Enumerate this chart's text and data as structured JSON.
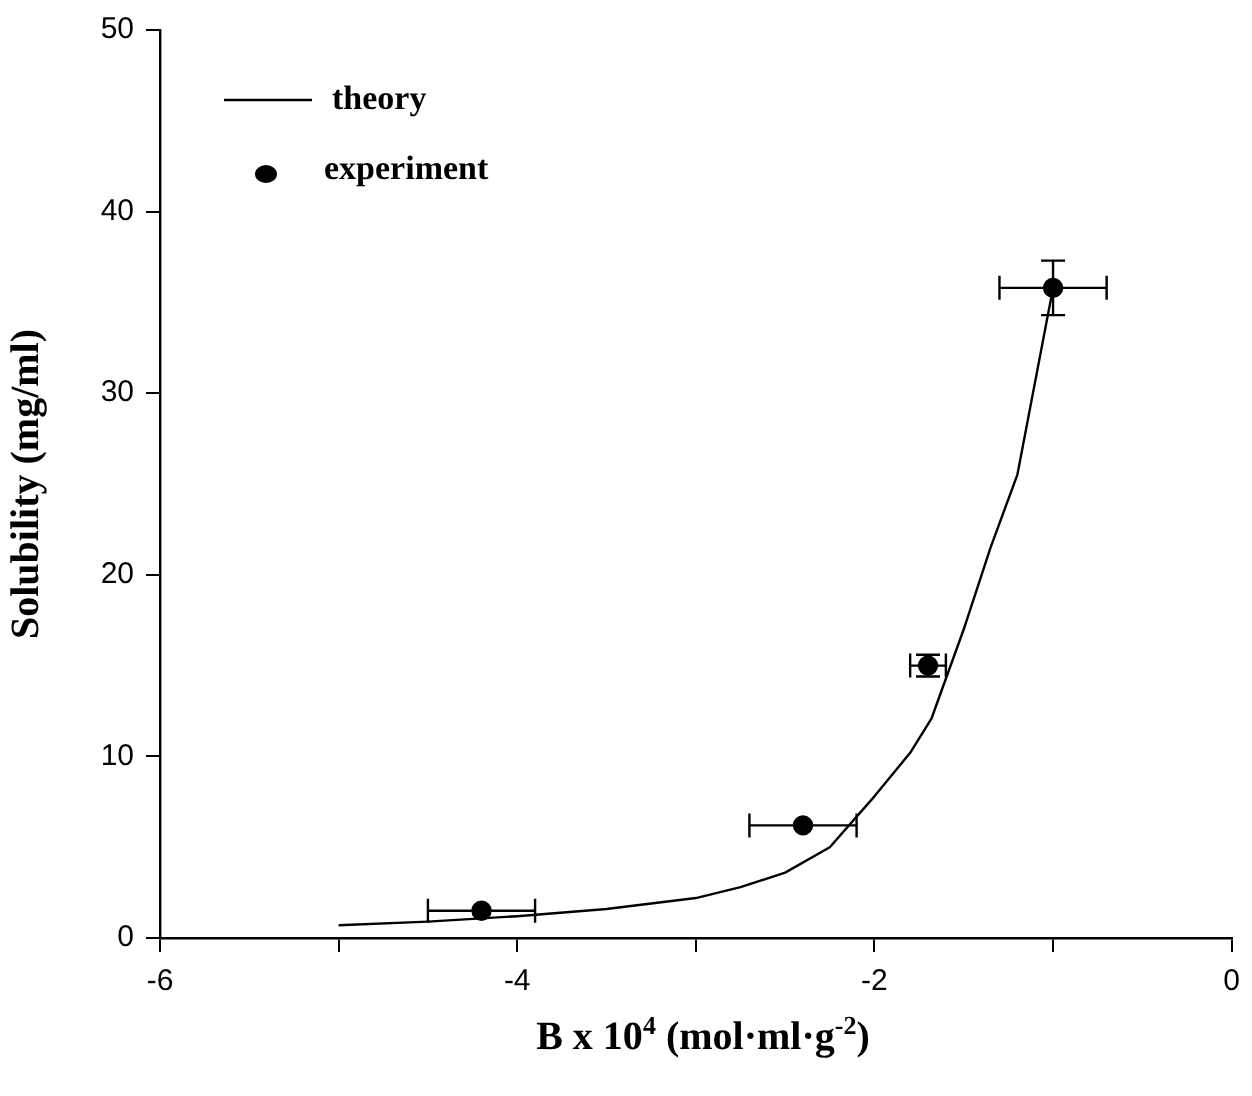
{
  "chart_data": {
    "type": "scatter",
    "xlabel": "B x 10$^{4}$ (mol·ml·g$^{-2}$)",
    "ylabel": "Solubility (mg/ml)",
    "xlim": [
      -6,
      0
    ],
    "xticks": [
      -6,
      {
        "value": -5,
        "label": null
      },
      -4,
      {
        "value": -3,
        "label": null
      },
      -2,
      {
        "value": -1,
        "label": null
      },
      0
    ],
    "ylim": [
      0,
      50
    ],
    "yticks": [
      0,
      10,
      20,
      30,
      40,
      50
    ],
    "grid": false,
    "legend": "top left",
    "series": [
      {
        "name": "theory",
        "type": "line",
        "color": "#000000",
        "marker": "none",
        "line_style": "solid",
        "x": [
          -5,
          -4.5,
          -4,
          -3.5,
          -3,
          -2.75,
          -2.5,
          -2.25,
          -2,
          -1.8,
          -1.68,
          -1.5,
          -1.35,
          -1.2,
          -1.0
        ],
        "values": [
          0.7,
          0.9,
          1.2,
          1.6,
          2.2,
          2.8,
          3.6,
          5.0,
          7.8,
          10.2,
          12.1,
          17,
          21.5,
          25.5,
          35.8
        ]
      },
      {
        "name": "experiment",
        "color": "#000000",
        "marker": "circle",
        "x": [
          -4.2,
          -2.4,
          -1.7,
          -1.0
        ],
        "values": [
          1.5,
          6.2,
          15.0,
          35.8
        ],
        "errors": [
          null,
          null,
          0.6,
          1.5
        ],
        "xerrors": [
          0.3,
          0.3,
          0.1,
          0.3
        ]
      }
    ]
  }
}
